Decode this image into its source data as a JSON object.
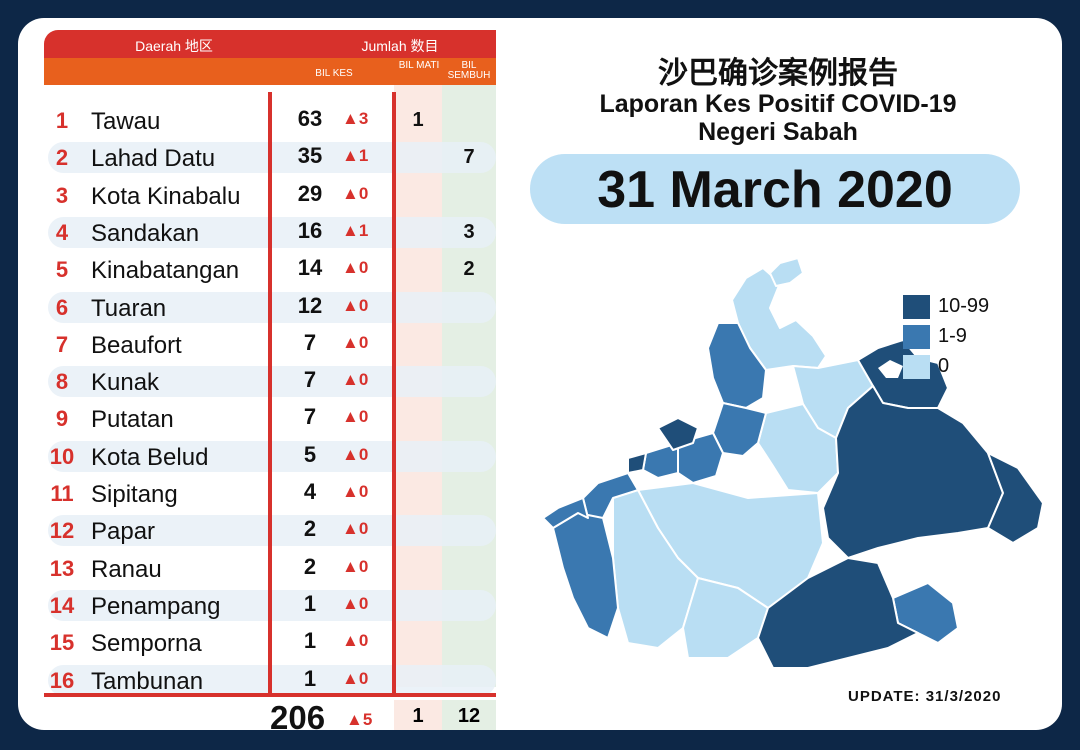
{
  "header": {
    "daerah": "Daerah 地区",
    "jumlah": "Jumlah 数目",
    "bil_kes": "BIL KES",
    "bil_mati": "BIL MATI",
    "bil_sembuh": "BIL SEMBUH"
  },
  "rows": [
    {
      "num": "1",
      "name": "Tawau",
      "kes": "63",
      "inc": "▲3",
      "mati": "1",
      "sembuh": ""
    },
    {
      "num": "2",
      "name": "Lahad Datu",
      "kes": "35",
      "inc": "▲1",
      "mati": "",
      "sembuh": "7"
    },
    {
      "num": "3",
      "name": "Kota Kinabalu",
      "kes": "29",
      "inc": "▲0",
      "mati": "",
      "sembuh": ""
    },
    {
      "num": "4",
      "name": "Sandakan",
      "kes": "16",
      "inc": "▲1",
      "mati": "",
      "sembuh": "3"
    },
    {
      "num": "5",
      "name": "Kinabatangan",
      "kes": "14",
      "inc": "▲0",
      "mati": "",
      "sembuh": "2"
    },
    {
      "num": "6",
      "name": "Tuaran",
      "kes": "12",
      "inc": "▲0",
      "mati": "",
      "sembuh": ""
    },
    {
      "num": "7",
      "name": "Beaufort",
      "kes": "7",
      "inc": "▲0",
      "mati": "",
      "sembuh": ""
    },
    {
      "num": "8",
      "name": "Kunak",
      "kes": "7",
      "inc": "▲0",
      "mati": "",
      "sembuh": ""
    },
    {
      "num": "9",
      "name": "Putatan",
      "kes": "7",
      "inc": "▲0",
      "mati": "",
      "sembuh": ""
    },
    {
      "num": "10",
      "name": "Kota Belud",
      "kes": "5",
      "inc": "▲0",
      "mati": "",
      "sembuh": ""
    },
    {
      "num": "11",
      "name": "Sipitang",
      "kes": "4",
      "inc": "▲0",
      "mati": "",
      "sembuh": ""
    },
    {
      "num": "12",
      "name": "Papar",
      "kes": "2",
      "inc": "▲0",
      "mati": "",
      "sembuh": ""
    },
    {
      "num": "13",
      "name": "Ranau",
      "kes": "2",
      "inc": "▲0",
      "mati": "",
      "sembuh": ""
    },
    {
      "num": "14",
      "name": "Penampang",
      "kes": "1",
      "inc": "▲0",
      "mati": "",
      "sembuh": ""
    },
    {
      "num": "15",
      "name": "Semporna",
      "kes": "1",
      "inc": "▲0",
      "mati": "",
      "sembuh": ""
    },
    {
      "num": "16",
      "name": "Tambunan",
      "kes": "1",
      "inc": "▲0",
      "mati": "",
      "sembuh": ""
    }
  ],
  "totals": {
    "kes": "206",
    "inc": "▲5",
    "mati": "1",
    "sembuh": "12"
  },
  "title": {
    "chinese": "沙巴确诊案例报告",
    "line1": "Laporan Kes Positif COVID-19",
    "line2": "Negeri Sabah"
  },
  "date": "31 March 2020",
  "legend": [
    {
      "label": "10-99",
      "color": "#1f4e79"
    },
    {
      "label": "1-9",
      "color": "#3a78b0"
    },
    {
      "label": "0",
      "color": "#b9def3"
    }
  ],
  "update": "UPDATE: 31/3/2020",
  "colors": {
    "red": "#d7312c",
    "orange": "#e8601d",
    "navy": "#0d2747"
  }
}
